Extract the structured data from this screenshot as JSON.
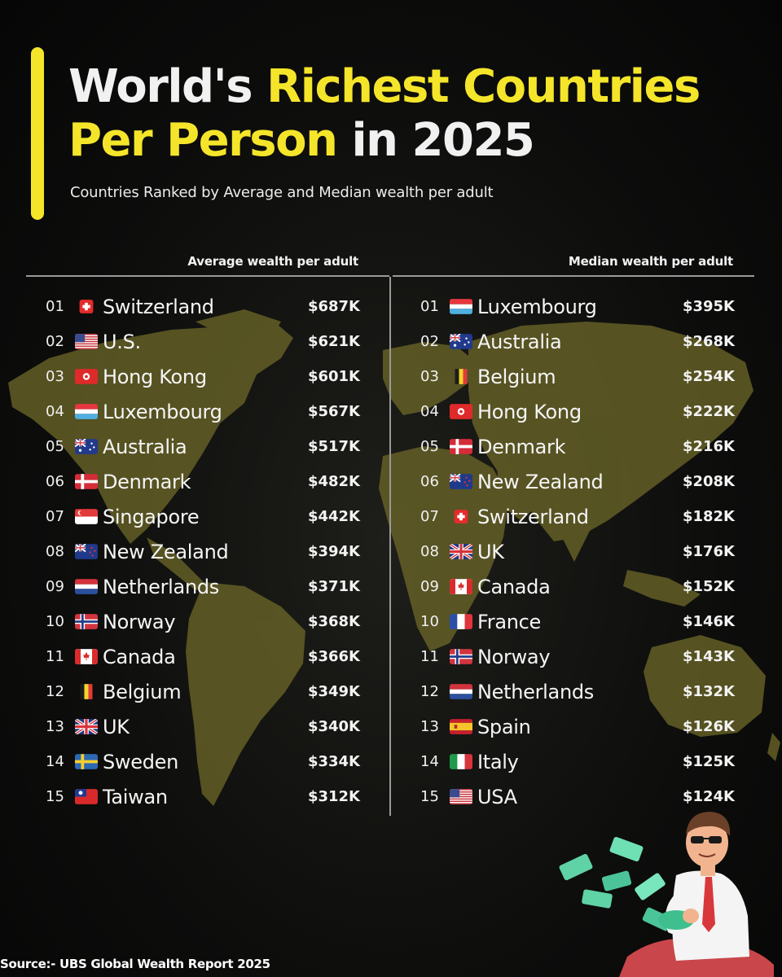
{
  "header": {
    "title_part1": "World's ",
    "title_part2": "Richest Countries",
    "title_part3": "Per Person",
    "title_part4": " in 2025",
    "subtitle": "Countries Ranked by Average and Median wealth per adult"
  },
  "colors": {
    "accent": "#f5e52a",
    "map": "#6a6528",
    "divider": "#9a9a9a"
  },
  "average": {
    "heading": "Average wealth per adult",
    "items": [
      {
        "rank": "01",
        "country": "Switzerland",
        "value": "$687K",
        "flag": "ch"
      },
      {
        "rank": "02",
        "country": "U.S.",
        "value": "$621K",
        "flag": "us"
      },
      {
        "rank": "03",
        "country": "Hong Kong",
        "value": "$601K",
        "flag": "hk"
      },
      {
        "rank": "04",
        "country": "Luxembourg",
        "value": "$567K",
        "flag": "lu"
      },
      {
        "rank": "05",
        "country": "Australia",
        "value": "$517K",
        "flag": "au"
      },
      {
        "rank": "06",
        "country": "Denmark",
        "value": "$482K",
        "flag": "dk"
      },
      {
        "rank": "07",
        "country": "Singapore",
        "value": "$442K",
        "flag": "sg"
      },
      {
        "rank": "08",
        "country": "New Zealand",
        "value": "$394K",
        "flag": "nz"
      },
      {
        "rank": "09",
        "country": "Netherlands",
        "value": "$371K",
        "flag": "nl"
      },
      {
        "rank": "10",
        "country": "Norway",
        "value": "$368K",
        "flag": "no"
      },
      {
        "rank": "11",
        "country": "Canada",
        "value": "$366K",
        "flag": "ca"
      },
      {
        "rank": "12",
        "country": "Belgium",
        "value": "$349K",
        "flag": "be"
      },
      {
        "rank": "13",
        "country": "UK",
        "value": "$340K",
        "flag": "gb"
      },
      {
        "rank": "14",
        "country": "Sweden",
        "value": "$334K",
        "flag": "se"
      },
      {
        "rank": "15",
        "country": "Taiwan",
        "value": "$312K",
        "flag": "tw"
      }
    ]
  },
  "median": {
    "heading": "Median wealth per adult",
    "items": [
      {
        "rank": "01",
        "country": "Luxembourg",
        "value": "$395K",
        "flag": "lu"
      },
      {
        "rank": "02",
        "country": "Australia",
        "value": "$268K",
        "flag": "au"
      },
      {
        "rank": "03",
        "country": "Belgium",
        "value": "$254K",
        "flag": "be"
      },
      {
        "rank": "04",
        "country": "Hong Kong",
        "value": "$222K",
        "flag": "hk"
      },
      {
        "rank": "05",
        "country": "Denmark",
        "value": "$216K",
        "flag": "dk"
      },
      {
        "rank": "06",
        "country": "New Zealand",
        "value": "$208K",
        "flag": "nz"
      },
      {
        "rank": "07",
        "country": "Switzerland",
        "value": "$182K",
        "flag": "ch"
      },
      {
        "rank": "08",
        "country": "UK",
        "value": "$176K",
        "flag": "gb"
      },
      {
        "rank": "09",
        "country": "Canada",
        "value": "$152K",
        "flag": "ca"
      },
      {
        "rank": "10",
        "country": "France",
        "value": "$146K",
        "flag": "fr"
      },
      {
        "rank": "11",
        "country": "Norway",
        "value": "$143K",
        "flag": "no"
      },
      {
        "rank": "12",
        "country": "Netherlands",
        "value": "$132K",
        "flag": "nl"
      },
      {
        "rank": "13",
        "country": "Spain",
        "value": "$126K",
        "flag": "es"
      },
      {
        "rank": "14",
        "country": "Italy",
        "value": "$125K",
        "flag": "it"
      },
      {
        "rank": "15",
        "country": "USA",
        "value": "$124K",
        "flag": "us"
      }
    ]
  },
  "footer": {
    "source": "Source:- UBS Global Wealth Report 2025"
  }
}
